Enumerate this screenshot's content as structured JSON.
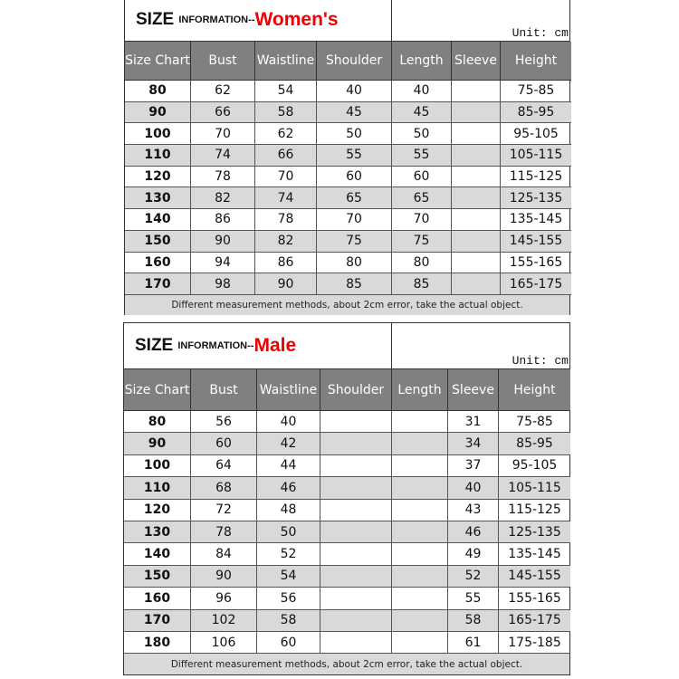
{
  "women": {
    "title_size": "SIZE",
    "title_info": "INFORMATION--",
    "title_gender": "Women's",
    "unit": "Unit: cm",
    "headers": [
      "Size Chart",
      "Bust",
      "Waistline",
      "Shoulder",
      "Length",
      "Sleeve",
      "Height"
    ],
    "rows": [
      [
        "80",
        "62",
        "54",
        "40",
        "40",
        "",
        "75-85"
      ],
      [
        "90",
        "66",
        "58",
        "45",
        "45",
        "",
        "85-95"
      ],
      [
        "100",
        "70",
        "62",
        "50",
        "50",
        "",
        "95-105"
      ],
      [
        "110",
        "74",
        "66",
        "55",
        "55",
        "",
        "105-115"
      ],
      [
        "120",
        "78",
        "70",
        "60",
        "60",
        "",
        "115-125"
      ],
      [
        "130",
        "82",
        "74",
        "65",
        "65",
        "",
        "125-135"
      ],
      [
        "140",
        "86",
        "78",
        "70",
        "70",
        "",
        "135-145"
      ],
      [
        "150",
        "90",
        "82",
        "75",
        "75",
        "",
        "145-155"
      ],
      [
        "160",
        "94",
        "86",
        "80",
        "80",
        "",
        "155-165"
      ],
      [
        "170",
        "98",
        "90",
        "85",
        "85",
        "",
        "165-175"
      ]
    ],
    "note": "Different measurement methods, about 2cm error, take the actual object."
  },
  "male": {
    "title_size": "SIZE",
    "title_info": "INFORMATION--",
    "title_gender": "Male",
    "unit": "Unit: cm",
    "headers": [
      "Size Chart",
      "Bust",
      "Waistline",
      "Shoulder",
      "Length",
      "Sleeve",
      "Height"
    ],
    "rows": [
      [
        "80",
        "56",
        "40",
        "",
        "",
        "31",
        "75-85"
      ],
      [
        "90",
        "60",
        "42",
        "",
        "",
        "34",
        "85-95"
      ],
      [
        "100",
        "64",
        "44",
        "",
        "",
        "37",
        "95-105"
      ],
      [
        "110",
        "68",
        "46",
        "",
        "",
        "40",
        "105-115"
      ],
      [
        "120",
        "72",
        "48",
        "",
        "",
        "43",
        "115-125"
      ],
      [
        "130",
        "78",
        "50",
        "",
        "",
        "46",
        "125-135"
      ],
      [
        "140",
        "84",
        "52",
        "",
        "",
        "49",
        "135-145"
      ],
      [
        "150",
        "90",
        "54",
        "",
        "",
        "52",
        "145-155"
      ],
      [
        "160",
        "96",
        "56",
        "",
        "",
        "55",
        "155-165"
      ],
      [
        "170",
        "102",
        "58",
        "",
        "",
        "58",
        "165-175"
      ],
      [
        "180",
        "106",
        "60",
        "",
        "",
        "61",
        "175-185"
      ]
    ],
    "note": "Different measurement methods, about 2cm error, take the actual object."
  }
}
